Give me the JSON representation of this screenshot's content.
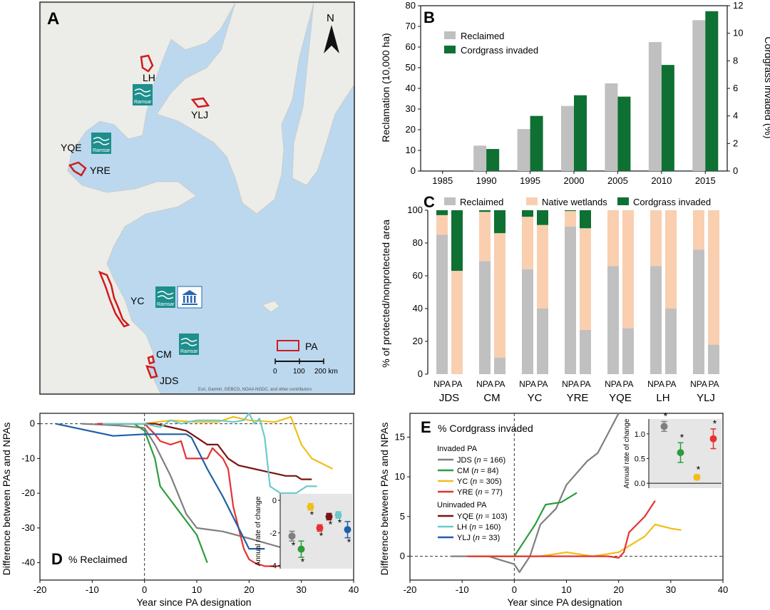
{
  "colors": {
    "reclaimed": "#c0c0c0",
    "native": "#f9cfb0",
    "cordgrass": "#0e7033",
    "sea": "#bcd8ee",
    "land": "#ecece8",
    "pa_outline": "#d11b1b",
    "series": {
      "JDS": "#7f7f7f",
      "CM": "#2a9d3a",
      "YC": "#f2be1a",
      "YRE": "#e63232",
      "YQE": "#7a1414",
      "LH": "#6ccacb",
      "YLJ": "#1f5fa8"
    }
  },
  "panel_labels": [
    "A",
    "B",
    "C",
    "D",
    "E"
  ],
  "map": {
    "north": "N",
    "sites": [
      "LH",
      "YLJ",
      "YQE",
      "YRE",
      "YC",
      "CM",
      "JDS"
    ],
    "ramsar_text": "Ramsar",
    "legend_pa": "PA",
    "scale_ticks": [
      "0",
      "100",
      "200 km"
    ],
    "attribution": "Esri, Garmin, GEBCO, NOAA NGDC, and other contributors"
  },
  "chart_data": [
    {
      "panel": "B",
      "type": "bar",
      "categories": [
        "1985",
        "1990",
        "1995",
        "2000",
        "2005",
        "2010",
        "2015"
      ],
      "series": [
        {
          "name": "Reclaimed",
          "axis": "left",
          "values": [
            0,
            12.3,
            20.3,
            31.5,
            42.4,
            62.4,
            73.0
          ]
        },
        {
          "name": "Cordgrass invaded",
          "axis": "right",
          "values": [
            0,
            1.6,
            4.0,
            5.5,
            5.4,
            7.7,
            11.6
          ]
        }
      ],
      "ylabel": "Reclamation (10,000 ha)",
      "y2label": "Cordgrass invaded (%)",
      "ylim": [
        0,
        80
      ],
      "y2lim": [
        0,
        12
      ],
      "yticks": [
        "0",
        "10",
        "20",
        "30",
        "40",
        "50",
        "60",
        "70",
        "80"
      ],
      "y2ticks": [
        "0",
        "2",
        "4",
        "6",
        "8",
        "10",
        "12"
      ],
      "legend_position": "top-left"
    },
    {
      "panel": "C",
      "type": "bar",
      "stacked": true,
      "groups": [
        "JDS",
        "CM",
        "YC",
        "YRE",
        "YQE",
        "LH",
        "YLJ"
      ],
      "bar_labels": [
        "NPA",
        "PA"
      ],
      "series_names": [
        "Reclaimed",
        "Native wetlands",
        "Cordgrass invaded"
      ],
      "values": {
        "JDS": {
          "NPA": [
            85,
            12,
            3
          ],
          "PA": [
            0,
            63,
            37
          ]
        },
        "CM": {
          "NPA": [
            69,
            30,
            1
          ],
          "PA": [
            10,
            76,
            14
          ]
        },
        "YC": {
          "NPA": [
            64,
            32,
            4
          ],
          "PA": [
            40,
            51,
            9
          ]
        },
        "YRE": {
          "NPA": [
            90,
            9.5,
            0.5
          ],
          "PA": [
            27,
            62,
            11
          ]
        },
        "YQE": {
          "NPA": [
            66,
            34,
            0
          ],
          "PA": [
            28,
            72,
            0
          ]
        },
        "LH": {
          "NPA": [
            66,
            34,
            0
          ],
          "PA": [
            40,
            60,
            0
          ]
        },
        "YLJ": {
          "NPA": [
            76,
            24,
            0
          ],
          "PA": [
            18,
            82,
            0
          ]
        }
      },
      "ylabel": "% of protected/nonprotected area",
      "ylim": [
        0,
        100
      ],
      "yticks": [
        "0",
        "20",
        "40",
        "60",
        "80",
        "100"
      ],
      "legend_position": "top"
    },
    {
      "panel": "D",
      "type": "line",
      "title": "% Reclaimed",
      "xlabel": "Year since PA designation",
      "ylabel": "Difference between PAs and NPAs",
      "xlim": [
        -20,
        40
      ],
      "ylim": [
        -45,
        3
      ],
      "xticks": [
        "-20",
        "-10",
        "0",
        "10",
        "20",
        "30",
        "40"
      ],
      "yticks": [
        "0",
        "-10",
        "-20",
        "-30",
        "-40"
      ],
      "series": [
        {
          "name": "JDS",
          "points": [
            [
              -12,
              0
            ],
            [
              -5,
              -0.5
            ],
            [
              0,
              -1.2
            ],
            [
              2,
              -6
            ],
            [
              5,
              -15
            ],
            [
              8,
              -26
            ],
            [
              10,
              -30
            ],
            [
              15,
              -31
            ],
            [
              20,
              -33
            ],
            [
              27,
              -36
            ],
            [
              28,
              -36
            ]
          ]
        },
        {
          "name": "CM",
          "points": [
            [
              -8,
              0
            ],
            [
              -2,
              0
            ],
            [
              0,
              -2
            ],
            [
              2,
              -10
            ],
            [
              3,
              -18
            ],
            [
              5,
              -22
            ],
            [
              8,
              -28
            ],
            [
              10,
              -32
            ],
            [
              12,
              -40
            ]
          ]
        },
        {
          "name": "YC",
          "points": [
            [
              -8,
              0
            ],
            [
              -2,
              0
            ],
            [
              0,
              0
            ],
            [
              5,
              1
            ],
            [
              10,
              0.5
            ],
            [
              14,
              0.5
            ],
            [
              17,
              2
            ],
            [
              20,
              1
            ],
            [
              25,
              0.5
            ],
            [
              28,
              2
            ],
            [
              30,
              -6
            ],
            [
              32,
              -10
            ],
            [
              36,
              -13
            ]
          ]
        },
        {
          "name": "YRE",
          "points": [
            [
              -9,
              0
            ],
            [
              0,
              0
            ],
            [
              2,
              -3
            ],
            [
              3,
              -5
            ],
            [
              5,
              -6
            ],
            [
              7,
              -5
            ],
            [
              8,
              -10
            ],
            [
              12,
              -10
            ],
            [
              13,
              -7
            ],
            [
              15,
              -10
            ],
            [
              16,
              -13
            ],
            [
              17,
              -24
            ],
            [
              19,
              -36
            ],
            [
              20,
              -39
            ],
            [
              21,
              -40
            ],
            [
              23,
              -41
            ],
            [
              28,
              -41
            ]
          ]
        },
        {
          "name": "YQE",
          "points": [
            [
              -5,
              0
            ],
            [
              0,
              0
            ],
            [
              2,
              0
            ],
            [
              5,
              -1
            ],
            [
              8,
              -2
            ],
            [
              10,
              -4
            ],
            [
              12,
              -6
            ],
            [
              14,
              -6
            ],
            [
              16,
              -10
            ],
            [
              18,
              -12
            ],
            [
              21,
              -13
            ],
            [
              24,
              -14
            ],
            [
              27,
              -15
            ],
            [
              29,
              -15
            ],
            [
              30,
              -16
            ],
            [
              32,
              -16
            ]
          ]
        },
        {
          "name": "LH",
          "points": [
            [
              -8,
              0
            ],
            [
              0,
              0
            ],
            [
              3,
              -1
            ],
            [
              5,
              1
            ],
            [
              7,
              0
            ],
            [
              10,
              1
            ],
            [
              14,
              1
            ],
            [
              17,
              0.5
            ],
            [
              19,
              1
            ],
            [
              20,
              3
            ],
            [
              21,
              0
            ],
            [
              22,
              1.5
            ],
            [
              23,
              -4
            ],
            [
              24,
              -18
            ],
            [
              26,
              -20
            ],
            [
              29,
              -20
            ],
            [
              31,
              -18
            ],
            [
              33,
              -18
            ]
          ]
        },
        {
          "name": "YLJ",
          "points": [
            [
              -17,
              0
            ],
            [
              -6,
              -3.5
            ],
            [
              0,
              -3
            ],
            [
              8,
              -3
            ],
            [
              9,
              -4
            ],
            [
              12,
              -13
            ],
            [
              15,
              -21
            ],
            [
              18,
              -30
            ],
            [
              20,
              -36
            ],
            [
              23,
              -36
            ]
          ]
        }
      ],
      "inset": {
        "ylabel": "Annual rate of change",
        "yticks": [
          "-4",
          "-2",
          "0"
        ],
        "ylim": [
          -4.2,
          0.4
        ],
        "points": [
          {
            "name": "JDS",
            "mean": -2.2,
            "err": 0.3,
            "star": true
          },
          {
            "name": "CM",
            "mean": -3.0,
            "err": 0.5,
            "star": true
          },
          {
            "name": "YC",
            "mean": -0.4,
            "err": 0.2,
            "star": true
          },
          {
            "name": "YRE",
            "mean": -1.7,
            "err": 0.2,
            "star": true
          },
          {
            "name": "YQE",
            "mean": -1.0,
            "err": 0.2,
            "star": true
          },
          {
            "name": "LH",
            "mean": -0.9,
            "err": 0.2,
            "star": true
          },
          {
            "name": "YLJ",
            "mean": -1.8,
            "err": 0.5,
            "star": true
          }
        ]
      }
    },
    {
      "panel": "E",
      "type": "line",
      "title": "% Cordgrass invaded",
      "xlabel": "Year since PA designation",
      "ylabel": "Difference between PAs and NPAs",
      "xlim": [
        -20,
        40
      ],
      "ylim": [
        -3,
        18
      ],
      "xticks": [
        "-20",
        "-10",
        "0",
        "10",
        "20",
        "30",
        "40"
      ],
      "yticks": [
        "0",
        "5",
        "10",
        "15"
      ],
      "legend": {
        "invaded_header": "Invaded PA",
        "uninvaded_header": "Uninvaded PA",
        "entries": [
          {
            "name": "JDS",
            "n": "166"
          },
          {
            "name": "CM",
            "n": "84"
          },
          {
            "name": "YC",
            "n": "305"
          },
          {
            "name": "YRE",
            "n": "77"
          },
          {
            "name": "YQE",
            "n": "103"
          },
          {
            "name": "LH",
            "n": "160"
          },
          {
            "name": "YLJ",
            "n": "33"
          }
        ]
      },
      "series": [
        {
          "name": "JDS",
          "points": [
            [
              -12,
              0
            ],
            [
              -5,
              0
            ],
            [
              0,
              -1
            ],
            [
              1,
              -2
            ],
            [
              3,
              0
            ],
            [
              5,
              4
            ],
            [
              8,
              6
            ],
            [
              10,
              9
            ],
            [
              14,
              12
            ],
            [
              16,
              13
            ],
            [
              20,
              18
            ]
          ]
        },
        {
          "name": "CM",
          "points": [
            [
              -8,
              0
            ],
            [
              0,
              0
            ],
            [
              2,
              2
            ],
            [
              4,
              4
            ],
            [
              6,
              6.5
            ],
            [
              9,
              6.8
            ],
            [
              12,
              8
            ]
          ]
        },
        {
          "name": "YC",
          "points": [
            [
              -8,
              0
            ],
            [
              0,
              0
            ],
            [
              5,
              0
            ],
            [
              10,
              0.5
            ],
            [
              15,
              0
            ],
            [
              20,
              0.5
            ],
            [
              25,
              2.5
            ],
            [
              27,
              4
            ],
            [
              30,
              3.5
            ],
            [
              32,
              3.3
            ]
          ]
        },
        {
          "name": "YRE",
          "points": [
            [
              -9,
              0
            ],
            [
              0,
              0
            ],
            [
              5,
              0
            ],
            [
              10,
              0
            ],
            [
              15,
              0
            ],
            [
              18,
              0
            ],
            [
              20,
              -0.2
            ],
            [
              21,
              0.5
            ],
            [
              22,
              3
            ],
            [
              25,
              5
            ],
            [
              27,
              7
            ]
          ]
        }
      ],
      "inset": {
        "ylabel": "Annual rate of change",
        "yticks": [
          "0.0",
          "0.5",
          "1.0"
        ],
        "ylim": [
          -0.1,
          1.3
        ],
        "points": [
          {
            "name": "JDS",
            "mean": 1.15,
            "err": 0.1,
            "star": true
          },
          {
            "name": "CM",
            "mean": 0.62,
            "err": 0.2,
            "star": true
          },
          {
            "name": "YC",
            "mean": 0.12,
            "err": 0.05,
            "star": true
          },
          {
            "name": "YRE",
            "mean": 0.9,
            "err": 0.2,
            "star": true
          }
        ]
      }
    }
  ]
}
